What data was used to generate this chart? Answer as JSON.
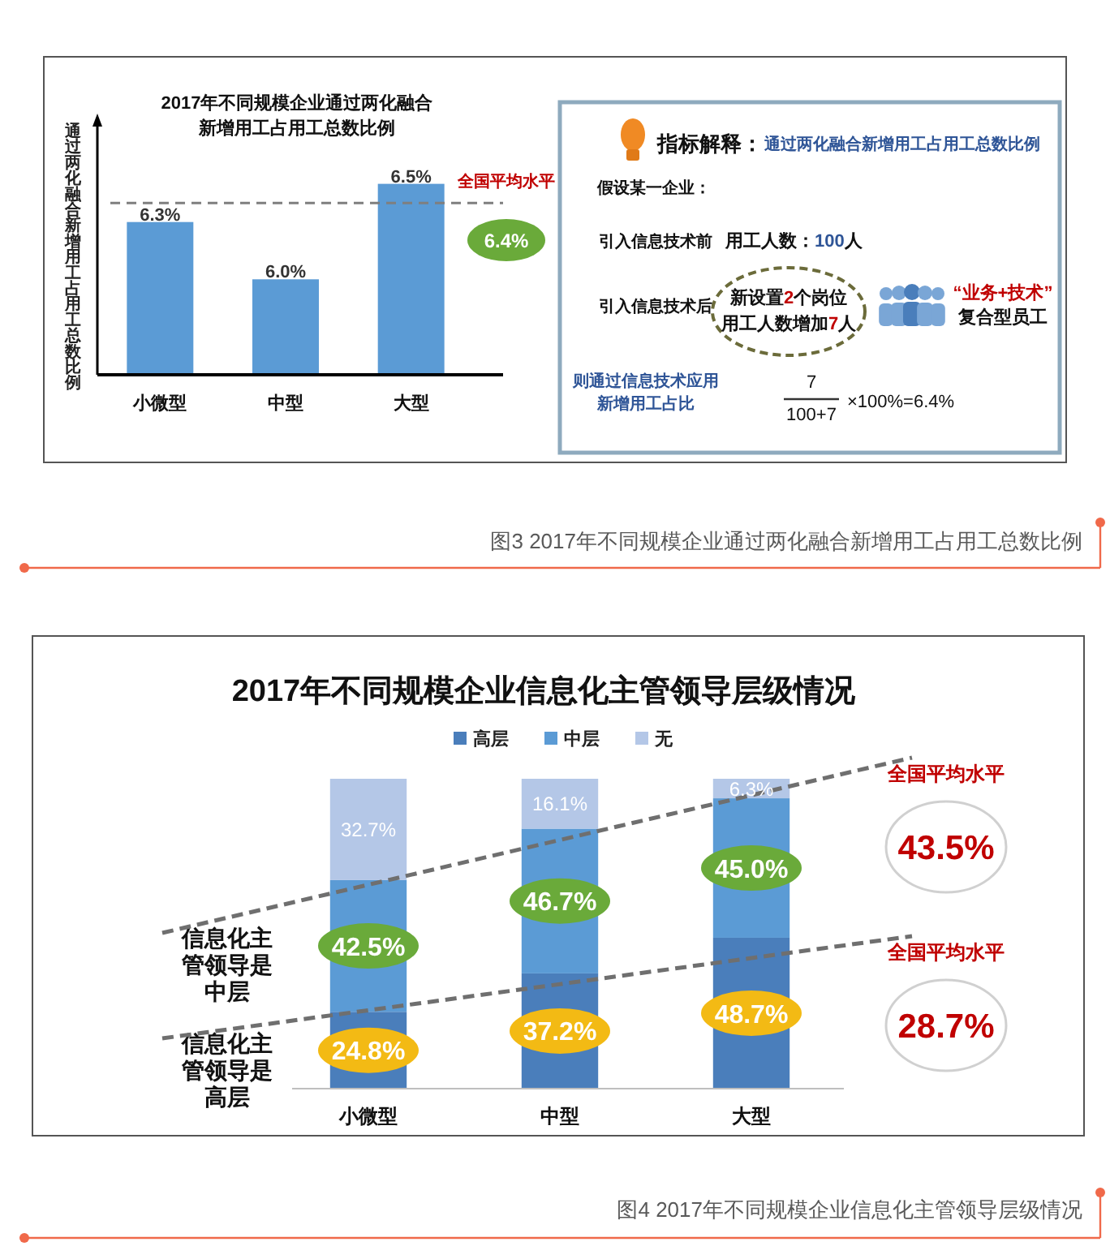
{
  "chart_data": [
    {
      "type": "bar",
      "title": "2017年不同规模企业通过两化融合新增用工占用工总数比例",
      "ylabel": "通过两化融合新增用工占用工总数比例",
      "categories": [
        "小微型",
        "中型",
        "大型"
      ],
      "values": [
        6.3,
        6.0,
        6.5
      ],
      "color": "#5b9bd5",
      "value_labels": [
        "6.3%",
        "6.0%",
        "6.5%"
      ],
      "ylim": [
        5.5,
        6.8
      ],
      "ref_lines": [
        {
          "axis": "y",
          "value": 6.4,
          "label": "全国平均水平",
          "color": "#7f7f7f",
          "line_style": "dashed"
        }
      ],
      "annotations": [
        "6.4%",
        "图3 2017年不同规模企业通过两化融合新增用工占用工总数比例"
      ]
    },
    {
      "type": "other",
      "title": "指标解释：",
      "subtitle": "通过两化融合新增用工占用工总数比例",
      "annotations": [
        "假设某一企业：",
        "引入信息技术前",
        "用工人数：100人",
        "引入信息技术后",
        "新设置2个岗位",
        "用工人数增加7人",
        "“业务+技术”",
        "复合型员工",
        "则通过信息技术应用",
        "新增用工占比",
        "7",
        "100+7",
        "×100%=6.4%"
      ]
    },
    {
      "type": "bar",
      "stacked": true,
      "title": "2017年不同规模企业信息化主管领导层级情况",
      "categories": [
        "小微型",
        "中型",
        "大型"
      ],
      "series": [
        {
          "name": "高层",
          "color": "#4a7ebb",
          "values": [
            24.8,
            37.2,
            48.7
          ],
          "value_labels": [
            "24.8%",
            "37.2%",
            "48.7%"
          ]
        },
        {
          "name": "中层",
          "color": "#5b9bd5",
          "values": [
            42.5,
            46.7,
            45.0
          ],
          "value_labels": [
            "42.5%",
            "46.7%",
            "45.0%"
          ]
        },
        {
          "name": "无",
          "color": "#b4c7e7",
          "values": [
            32.7,
            16.1,
            6.3
          ],
          "value_labels": [
            "32.7%",
            "16.1%",
            "6.3%"
          ]
        }
      ],
      "ylim": [
        0,
        100
      ],
      "legend": "top",
      "annotations": [
        "信息化主管领导是中层",
        "信息化主管领导是高层",
        "全国平均水平",
        "43.5%",
        "全国平均水平",
        "28.7%",
        "图4 2017年不同规模企业信息化主管领导层级情况"
      ]
    }
  ]
}
